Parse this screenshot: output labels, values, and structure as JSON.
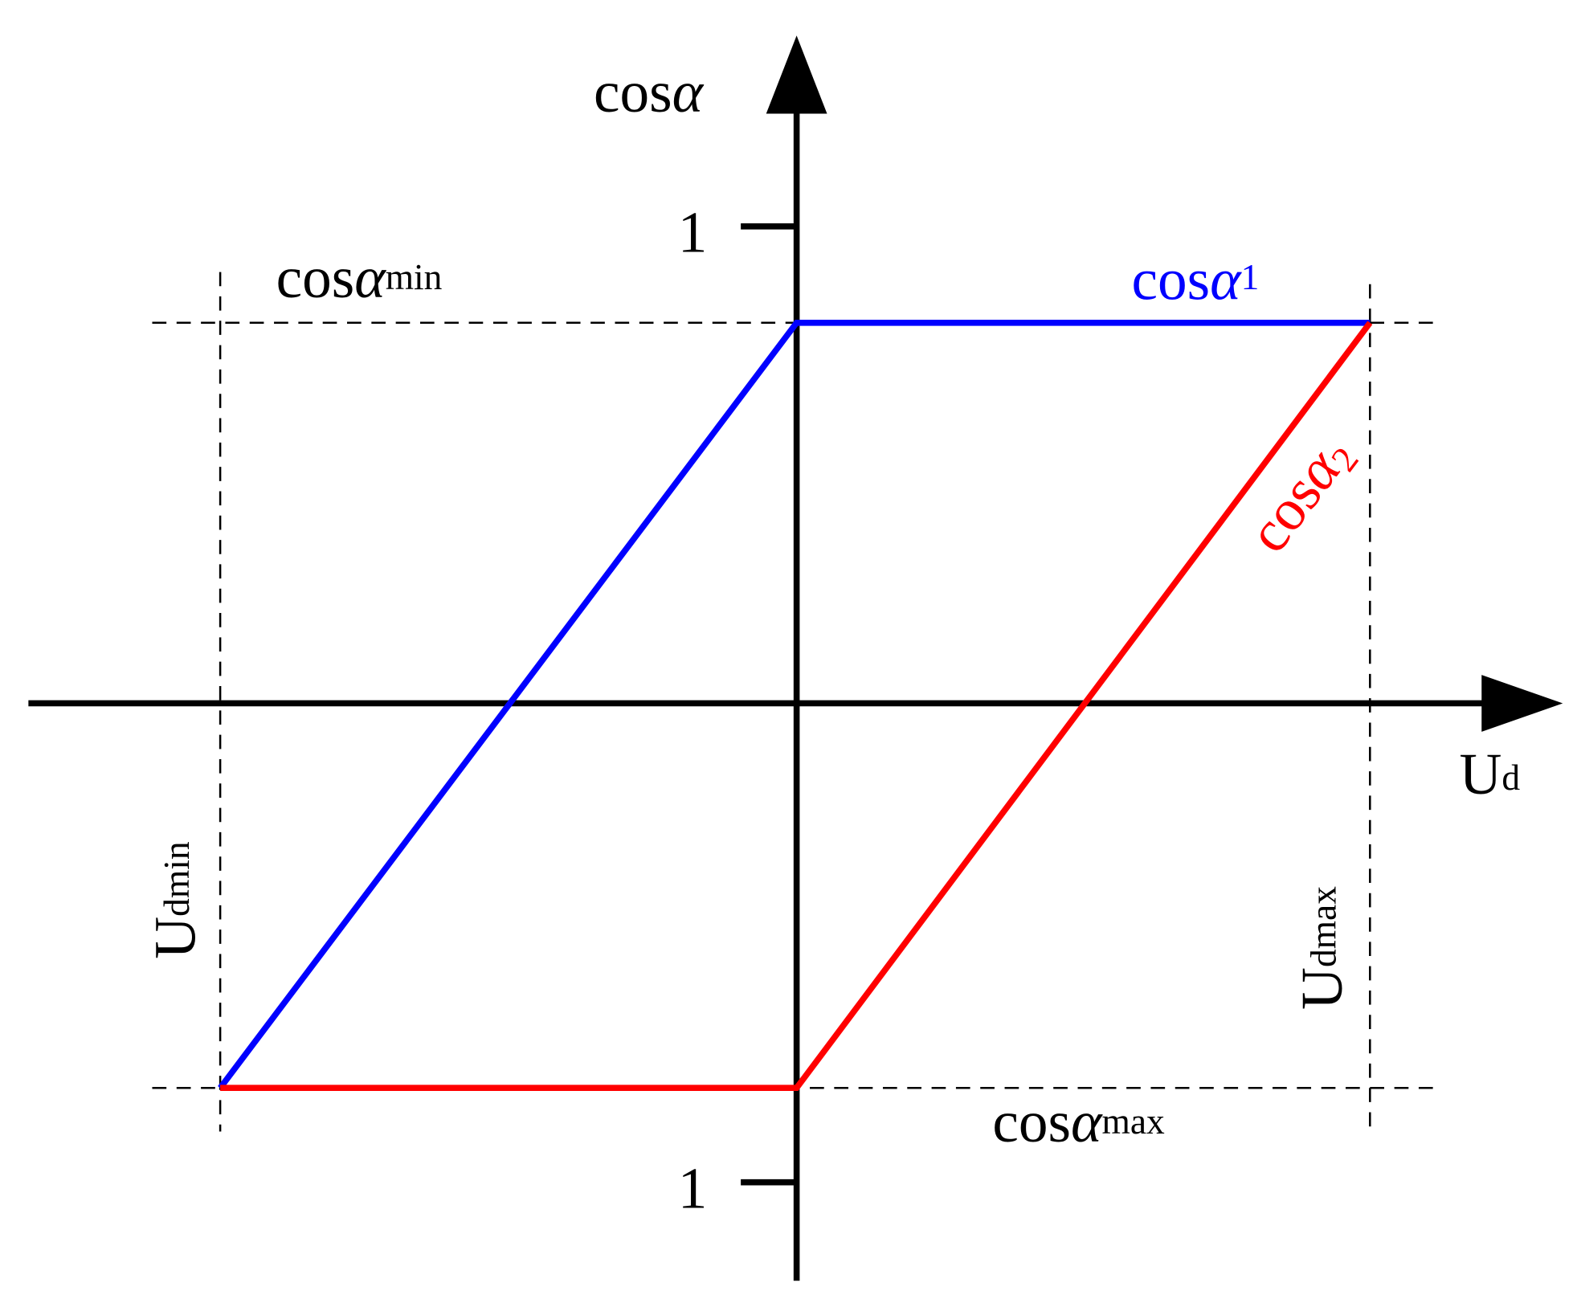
{
  "diagram": {
    "y_axis_label": {
      "base": "cos",
      "greek": "α"
    },
    "x_axis_label": {
      "base": "U",
      "sub": "d"
    },
    "upper_tick": "1",
    "lower_tick": "1",
    "cos_min_label": {
      "base": "cos",
      "greek": "α",
      "sub": "min"
    },
    "cos_max_label": {
      "base": "cos",
      "greek": "α",
      "sub": "max"
    },
    "curve1_label": {
      "base": "cos",
      "greek": "α",
      "sub": "1"
    },
    "curve2_label": {
      "base": "cos",
      "greek": "α",
      "sub": "2"
    },
    "ud_min_label": {
      "base": "U",
      "sub": "dmin"
    },
    "ud_max_label": {
      "base": "U",
      "sub": "dmax"
    }
  }
}
